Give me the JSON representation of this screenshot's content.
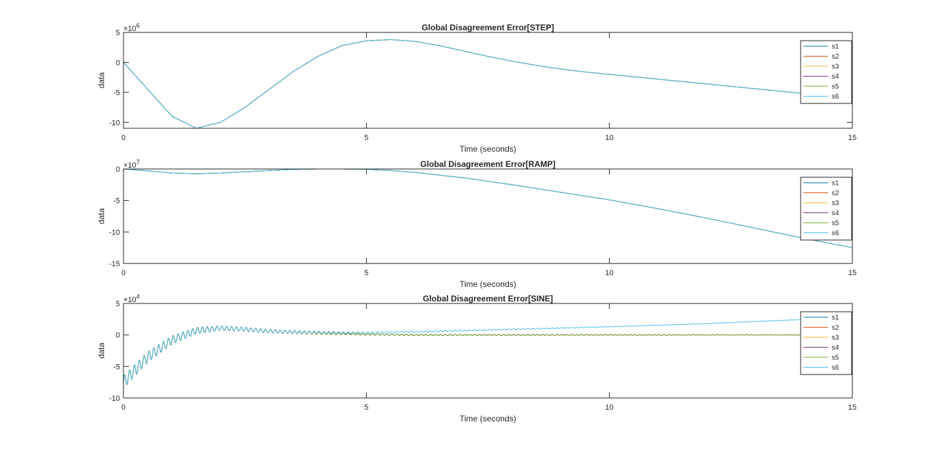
{
  "figure": {
    "background": "#ffffff"
  },
  "chart_data": [
    {
      "type": "line",
      "title": "Global Disagreement Error[STEP]",
      "xlabel": "Time (seconds)",
      "ylabel": "data",
      "exponent_label": "×10",
      "exponent": "6",
      "xlim": [
        0,
        15
      ],
      "ylim": [
        -11,
        5
      ],
      "xticks": [
        0,
        5,
        10,
        15
      ],
      "yticks": [
        5,
        0,
        -5,
        -10
      ],
      "legend_position": "top-right",
      "series": [
        {
          "name": "s1",
          "color": "#0072BD",
          "x": [
            0,
            0.5,
            1,
            1.5,
            2,
            2.5,
            3,
            3.5,
            4,
            4.5,
            5,
            5.5,
            6,
            6.5,
            7,
            7.5,
            8,
            8.5,
            9,
            9.5,
            10,
            11,
            12,
            13,
            14,
            15
          ],
          "y": [
            0,
            -4.5,
            -9,
            -11,
            -10,
            -7.5,
            -4.5,
            -1.5,
            1,
            2.8,
            3.6,
            3.8,
            3.5,
            2.8,
            1.9,
            1,
            0.2,
            -0.5,
            -1.1,
            -1.6,
            -2,
            -2.8,
            -3.6,
            -4.4,
            -5.2,
            -6
          ]
        },
        {
          "name": "s2",
          "color": "#D95319",
          "x": [
            0,
            0.5,
            1,
            1.5,
            2,
            2.5,
            3,
            3.5,
            4,
            4.5,
            5,
            5.5,
            6,
            6.5,
            7,
            7.5,
            8,
            8.5,
            9,
            9.5,
            10,
            11,
            12,
            13,
            14,
            15
          ],
          "y": [
            0,
            -4.5,
            -9,
            -11,
            -10,
            -7.5,
            -4.5,
            -1.5,
            1,
            2.8,
            3.6,
            3.8,
            3.5,
            2.8,
            1.9,
            1,
            0.2,
            -0.5,
            -1.1,
            -1.6,
            -2,
            -2.8,
            -3.6,
            -4.4,
            -5.2,
            -6
          ]
        },
        {
          "name": "s3",
          "color": "#EDB120",
          "x": [
            0,
            0.5,
            1,
            1.5,
            2,
            2.5,
            3,
            3.5,
            4,
            4.5,
            5,
            5.5,
            6,
            6.5,
            7,
            7.5,
            8,
            8.5,
            9,
            9.5,
            10,
            11,
            12,
            13,
            14,
            15
          ],
          "y": [
            0,
            -4.5,
            -9,
            -11,
            -10,
            -7.5,
            -4.5,
            -1.5,
            1,
            2.8,
            3.6,
            3.8,
            3.5,
            2.8,
            1.9,
            1,
            0.2,
            -0.5,
            -1.1,
            -1.6,
            -2,
            -2.8,
            -3.6,
            -4.4,
            -5.2,
            -6
          ]
        },
        {
          "name": "s4",
          "color": "#7E2F8E",
          "x": [
            0,
            0.5,
            1,
            1.5,
            2,
            2.5,
            3,
            3.5,
            4,
            4.5,
            5,
            5.5,
            6,
            6.5,
            7,
            7.5,
            8,
            8.5,
            9,
            9.5,
            10,
            11,
            12,
            13,
            14,
            15
          ],
          "y": [
            0,
            -4.5,
            -9,
            -11,
            -10,
            -7.5,
            -4.5,
            -1.5,
            1,
            2.8,
            3.6,
            3.8,
            3.5,
            2.8,
            1.9,
            1,
            0.2,
            -0.5,
            -1.1,
            -1.6,
            -2,
            -2.8,
            -3.6,
            -4.4,
            -5.2,
            -6
          ]
        },
        {
          "name": "s5",
          "color": "#77AC30",
          "x": [
            0,
            0.5,
            1,
            1.5,
            2,
            2.5,
            3,
            3.5,
            4,
            4.5,
            5,
            5.5,
            6,
            6.5,
            7,
            7.5,
            8,
            8.5,
            9,
            9.5,
            10,
            11,
            12,
            13,
            14,
            15
          ],
          "y": [
            0,
            -4.5,
            -9,
            -11,
            -10,
            -7.5,
            -4.5,
            -1.5,
            1,
            2.8,
            3.6,
            3.8,
            3.5,
            2.8,
            1.9,
            1,
            0.2,
            -0.5,
            -1.1,
            -1.6,
            -2,
            -2.8,
            -3.6,
            -4.4,
            -5.2,
            -6
          ]
        },
        {
          "name": "s6",
          "color": "#4DBEEE",
          "x": [
            0,
            0.5,
            1,
            1.5,
            2,
            2.5,
            3,
            3.5,
            4,
            4.5,
            5,
            5.5,
            6,
            6.5,
            7,
            7.5,
            8,
            8.5,
            9,
            9.5,
            10,
            11,
            12,
            13,
            14,
            15
          ],
          "y": [
            0,
            -4.5,
            -9,
            -11,
            -10,
            -7.5,
            -4.5,
            -1.5,
            1,
            2.8,
            3.6,
            3.8,
            3.5,
            2.8,
            1.9,
            1,
            0.2,
            -0.5,
            -1.1,
            -1.6,
            -2,
            -2.8,
            -3.6,
            -4.4,
            -5.2,
            -6
          ]
        }
      ]
    },
    {
      "type": "line",
      "title": "Global Disagreement Error[RAMP]",
      "xlabel": "Time (seconds)",
      "ylabel": "data",
      "exponent_label": "×10",
      "exponent": "7",
      "xlim": [
        0,
        15
      ],
      "ylim": [
        -15,
        0
      ],
      "xticks": [
        0,
        5,
        10,
        15
      ],
      "yticks": [
        0,
        -5,
        -10,
        -15
      ],
      "legend_position": "top-right",
      "series": [
        {
          "name": "s1",
          "color": "#0072BD",
          "x": [
            0,
            0.5,
            1,
            1.5,
            2,
            2.5,
            3,
            3.5,
            4,
            4.5,
            5,
            5.5,
            6,
            7,
            8,
            9,
            10,
            11,
            12,
            13,
            14,
            15
          ],
          "y": [
            0,
            -0.3,
            -0.65,
            -0.75,
            -0.65,
            -0.45,
            -0.25,
            -0.08,
            0,
            0,
            -0.05,
            -0.25,
            -0.55,
            -1.4,
            -2.5,
            -3.7,
            -4.9,
            -6.3,
            -7.8,
            -9.4,
            -11,
            -12.5
          ]
        },
        {
          "name": "s2",
          "color": "#D95319",
          "x": [
            0,
            0.5,
            1,
            1.5,
            2,
            2.5,
            3,
            3.5,
            4,
            4.5,
            5,
            5.5,
            6,
            7,
            8,
            9,
            10,
            11,
            12,
            13,
            14,
            15
          ],
          "y": [
            0,
            -0.3,
            -0.65,
            -0.75,
            -0.65,
            -0.45,
            -0.25,
            -0.08,
            0,
            0,
            -0.05,
            -0.25,
            -0.55,
            -1.4,
            -2.5,
            -3.7,
            -4.9,
            -6.3,
            -7.8,
            -9.4,
            -11,
            -12.5
          ]
        },
        {
          "name": "s3",
          "color": "#EDB120",
          "x": [
            0,
            0.5,
            1,
            1.5,
            2,
            2.5,
            3,
            3.5,
            4,
            4.5,
            5,
            5.5,
            6,
            7,
            8,
            9,
            10,
            11,
            12,
            13,
            14,
            15
          ],
          "y": [
            0,
            -0.3,
            -0.65,
            -0.75,
            -0.65,
            -0.45,
            -0.25,
            -0.08,
            0,
            0,
            -0.05,
            -0.25,
            -0.55,
            -1.4,
            -2.5,
            -3.7,
            -4.9,
            -6.3,
            -7.8,
            -9.4,
            -11,
            -12.5
          ]
        },
        {
          "name": "s4",
          "color": "#7E2F8E",
          "x": [
            0,
            0.5,
            1,
            1.5,
            2,
            2.5,
            3,
            3.5,
            4,
            4.5,
            5,
            5.5,
            6,
            7,
            8,
            9,
            10,
            11,
            12,
            13,
            14,
            15
          ],
          "y": [
            0,
            -0.3,
            -0.65,
            -0.75,
            -0.65,
            -0.45,
            -0.25,
            -0.08,
            0,
            0,
            -0.05,
            -0.25,
            -0.55,
            -1.4,
            -2.5,
            -3.7,
            -4.9,
            -6.3,
            -7.8,
            -9.4,
            -11,
            -12.5
          ]
        },
        {
          "name": "s5",
          "color": "#77AC30",
          "x": [
            0,
            0.5,
            1,
            1.5,
            2,
            2.5,
            3,
            3.5,
            4,
            4.5,
            5,
            5.5,
            6,
            7,
            8,
            9,
            10,
            11,
            12,
            13,
            14,
            15
          ],
          "y": [
            0,
            -0.3,
            -0.65,
            -0.75,
            -0.65,
            -0.45,
            -0.25,
            -0.08,
            0,
            0,
            -0.05,
            -0.25,
            -0.55,
            -1.4,
            -2.5,
            -3.7,
            -4.9,
            -6.3,
            -7.8,
            -9.4,
            -11,
            -12.5
          ]
        },
        {
          "name": "s6",
          "color": "#4DBEEE",
          "x": [
            0,
            0.5,
            1,
            1.5,
            2,
            2.5,
            3,
            3.5,
            4,
            4.5,
            5,
            5.5,
            6,
            7,
            8,
            9,
            10,
            11,
            12,
            13,
            14,
            15
          ],
          "y": [
            0,
            -0.3,
            -0.65,
            -0.75,
            -0.65,
            -0.45,
            -0.25,
            -0.08,
            0,
            0,
            -0.05,
            -0.25,
            -0.55,
            -1.4,
            -2.5,
            -3.7,
            -4.9,
            -6.3,
            -7.8,
            -9.4,
            -11,
            -12.5
          ]
        }
      ]
    },
    {
      "type": "line",
      "title": "Global Disagreement Error[SINE]",
      "xlabel": "Time (seconds)",
      "ylabel": "data",
      "exponent_label": "×10",
      "exponent": "4",
      "xlim": [
        0,
        15
      ],
      "ylim": [
        -10,
        5
      ],
      "xticks": [
        0,
        5,
        10,
        15
      ],
      "yticks": [
        5,
        0,
        -5,
        -10
      ],
      "legend_position": "top-right",
      "oscillation": {
        "x": [
          0,
          1.5,
          2,
          3,
          5,
          8,
          15
        ],
        "amplitude": [
          1,
          0.5,
          0.35,
          0.28,
          0.12,
          0.06,
          0.03
        ],
        "frequency": 10
      },
      "series": [
        {
          "name": "s1",
          "color": "#0072BD",
          "x": [
            0,
            0.5,
            1,
            1.5,
            2,
            2.5,
            3,
            4,
            5,
            6,
            8,
            10,
            12,
            15
          ],
          "y": [
            -7.5,
            -3.5,
            -0.8,
            0.7,
            1.1,
            0.9,
            0.6,
            0.3,
            0.1,
            0,
            0,
            0,
            0,
            0
          ]
        },
        {
          "name": "s2",
          "color": "#D95319",
          "x": [
            0,
            0.5,
            1,
            1.5,
            2,
            2.5,
            3,
            4,
            5,
            6,
            8,
            10,
            12,
            15
          ],
          "y": [
            -7.5,
            -3.5,
            -0.8,
            0.7,
            1.1,
            0.9,
            0.6,
            0.3,
            0.1,
            0,
            0,
            0,
            0,
            0
          ]
        },
        {
          "name": "s3",
          "color": "#EDB120",
          "x": [
            0,
            0.5,
            1,
            1.5,
            2,
            2.5,
            3,
            4,
            5,
            6,
            8,
            10,
            12,
            15
          ],
          "y": [
            -7.5,
            -3.5,
            -0.8,
            0.7,
            1.1,
            0.9,
            0.6,
            0.3,
            0.1,
            0,
            0,
            0,
            0,
            0
          ]
        },
        {
          "name": "s4",
          "color": "#7E2F8E",
          "x": [
            0,
            0.5,
            1,
            1.5,
            2,
            2.5,
            3,
            4,
            5,
            6,
            8,
            10,
            12,
            15
          ],
          "y": [
            -7.5,
            -3.5,
            -0.8,
            0.7,
            1.1,
            0.9,
            0.6,
            0.3,
            0.1,
            0,
            0,
            0,
            0,
            0
          ]
        },
        {
          "name": "s5",
          "color": "#77AC30",
          "x": [
            0,
            0.5,
            1,
            1.5,
            2,
            2.5,
            3,
            4,
            5,
            6,
            8,
            10,
            12,
            15
          ],
          "y": [
            -7.5,
            -3.5,
            -0.8,
            0.7,
            1.1,
            0.9,
            0.6,
            0.3,
            0.1,
            0,
            0,
            0,
            0,
            0
          ]
        },
        {
          "name": "s6",
          "color": "#4DBEEE",
          "x": [
            0,
            0.5,
            1,
            1.5,
            2,
            2.5,
            3,
            4,
            5,
            6,
            8,
            10,
            12,
            15
          ],
          "y": [
            -7.5,
            -3.5,
            -0.8,
            0.7,
            1.1,
            0.9,
            0.6,
            0.4,
            0.35,
            0.5,
            0.9,
            1.3,
            1.8,
            2.8
          ]
        }
      ]
    }
  ]
}
